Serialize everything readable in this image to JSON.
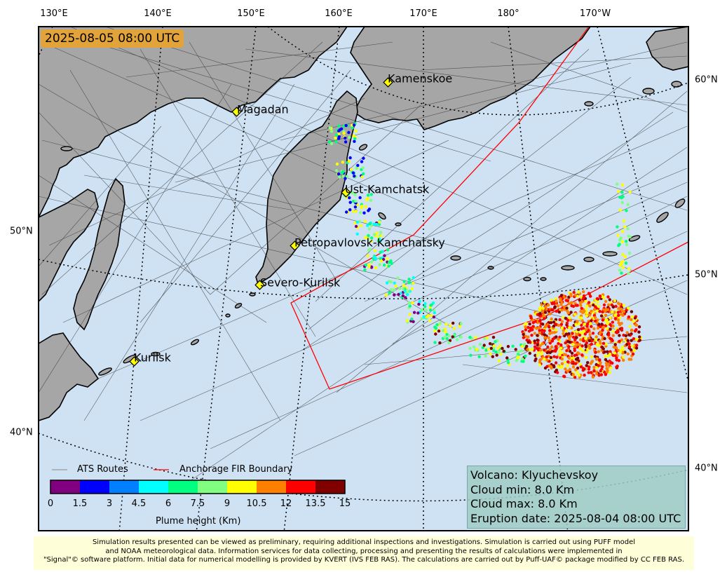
{
  "map": {
    "timestamp": "2025-08-05 08:00 UTC",
    "lon_labels": [
      "130°E",
      "140°E",
      "150°E",
      "160°E",
      "170°E",
      "180°",
      "170°W"
    ],
    "lat_labels_left": [
      "50°N",
      "40°N"
    ],
    "lat_labels_right": [
      "60°N",
      "50°N",
      "40°N"
    ],
    "cities": [
      "Kamenskoe",
      "Magadan",
      "Ust-Kamchatsk",
      "Petropavlovsk-Kamchatsky",
      "Severo-Kurilsk",
      "Kurilsk"
    ]
  },
  "legend": {
    "ats_routes": "ATS Routes",
    "fir_boundary": "Anchorage FIR Boundary",
    "colorbar_title": "Plume height (Km)",
    "colorbar_ticks": [
      "0",
      "1.5",
      "3",
      "4.5",
      "6",
      "7.5",
      "9",
      "10.5",
      "12",
      "13.5",
      "15"
    ],
    "colorbar_colors": [
      "#800080",
      "#0000ff",
      "#0080ff",
      "#00ffff",
      "#00ff80",
      "#80ff80",
      "#ffff00",
      "#ff8000",
      "#ff0000",
      "#800000"
    ]
  },
  "info": {
    "volcano": "Volcano: Klyuchevskoy",
    "cloud_min": "Cloud min: 8.0 Km",
    "cloud_max": "Cloud max: 8.0 Km",
    "eruption_date": "Eruption date: 2025-08-04 08:00 UTC"
  },
  "footer": {
    "line1": "Simulation results presented can be viewed as preliminary, requiring additional inspections and investigations. Simulation is carried out using PUFF model",
    "line2": "and NOAA meteorological data. Information services for data collecting, processing and presenting the results of calculations were implemented in",
    "line3": "\"Signal\"© software platform. Initial data for numerical modelling is provided by KVERT (IVS FEB RAS). The calculations are carried out by Puff-UAF© package modified by CC FEB RAS."
  },
  "colors": {
    "ocean": "#cfe2f3",
    "land": "#a6a6a6",
    "fir": "#ff0000",
    "timestamp_bg": "#e2a43a"
  }
}
